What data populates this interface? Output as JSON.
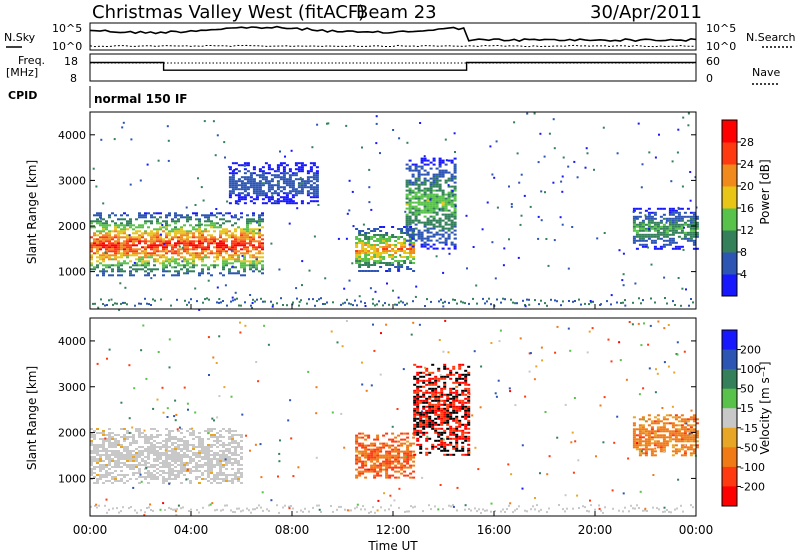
{
  "header": {
    "title": "Christmas Valley West (fitACF)",
    "beam": "Beam 23",
    "date": "30/Apr/2011"
  },
  "strip_panels": {
    "noise": {
      "left_label": "N.Sky",
      "right_label": "N.Search",
      "left_ticks": [
        "10^5",
        "10^0"
      ],
      "right_ticks": [
        "10^5",
        "10^0"
      ]
    },
    "frequency": {
      "left_label_line1": "Freq.",
      "left_label_line2": "[MHz]",
      "right_label": "Nave",
      "left_ticks": [
        "18",
        "8"
      ],
      "right_ticks": [
        "60",
        "0"
      ],
      "freq_steps": [
        {
          "from": "00:00",
          "to": "02:55",
          "mhz": 15.5
        },
        {
          "from": "02:55",
          "to": "14:55",
          "mhz": 12.0
        },
        {
          "from": "14:55",
          "to": "24:00",
          "mhz": 15.5
        }
      ]
    },
    "cpid": {
      "label": "CPID",
      "program": "normal 150 IF"
    }
  },
  "colors": {
    "power_scale": [
      "#1818ff",
      "#2c55b4",
      "#33805a",
      "#58c24a",
      "#e8c516",
      "#f08a1c",
      "#ff3a10",
      "#ff0000"
    ],
    "velocity_scale": [
      "#1818ff",
      "#2c55b4",
      "#33805a",
      "#58c24a",
      "#c8c8c8",
      "#e8a626",
      "#f07a16",
      "#ff3a10",
      "#ff0000"
    ]
  },
  "chart_data": [
    {
      "type": "heatmap",
      "quantity": "power",
      "ylabel": "Slant Range [km]",
      "ylim": [
        180,
        4500
      ],
      "yticks": [
        1000,
        2000,
        3000,
        4000
      ],
      "xlim": [
        "00:00",
        "24:00"
      ],
      "colorbar": {
        "label": "Power [dB]",
        "range": [
          0,
          32
        ],
        "ticks": [
          "4",
          "8",
          "12",
          "16",
          "20",
          "24",
          "28"
        ]
      },
      "features": [
        {
          "t_hours": [
            0,
            6.8
          ],
          "range_km": [
            900,
            2300
          ],
          "peak_db": 30
        },
        {
          "t_hours": [
            5.5,
            9.0
          ],
          "range_km": [
            2500,
            3400
          ],
          "peak_db": 8
        },
        {
          "t_hours": [
            10.5,
            12.8
          ],
          "range_km": [
            1000,
            2000
          ],
          "peak_db": 24
        },
        {
          "t_hours": [
            12.5,
            14.5
          ],
          "range_km": [
            1500,
            3500
          ],
          "peak_db": 16
        },
        {
          "t_hours": [
            21.5,
            24.0
          ],
          "range_km": [
            1500,
            2400
          ],
          "peak_db": 14
        }
      ]
    },
    {
      "type": "heatmap",
      "quantity": "velocity",
      "ylabel": "Slant Range [km]",
      "ylim": [
        180,
        4500
      ],
      "yticks": [
        1000,
        2000,
        3000,
        4000
      ],
      "xlim": [
        "00:00",
        "24:00"
      ],
      "xlabel": "Time UT",
      "xticks": [
        "00:00",
        "04:00",
        "08:00",
        "12:00",
        "16:00",
        "20:00",
        "00:00"
      ],
      "colorbar": {
        "label": "Velocity [m s⁻¹]",
        "range": [
          -250,
          250
        ],
        "ticks": [
          "200",
          "100",
          "50",
          "15",
          "-15",
          "-50",
          "-100",
          "-200"
        ]
      },
      "features": [
        {
          "t_hours": [
            0,
            6.0
          ],
          "range_km": [
            900,
            2100
          ],
          "velocity_ms": -10
        },
        {
          "t_hours": [
            10.5,
            12.8
          ],
          "range_km": [
            1000,
            2000
          ],
          "velocity_ms": -150
        },
        {
          "t_hours": [
            12.8,
            15.0
          ],
          "range_km": [
            1500,
            3500
          ],
          "velocity_ms": -250
        },
        {
          "t_hours": [
            21.5,
            24.0
          ],
          "range_km": [
            1500,
            2400
          ],
          "velocity_ms": -120
        }
      ]
    }
  ]
}
